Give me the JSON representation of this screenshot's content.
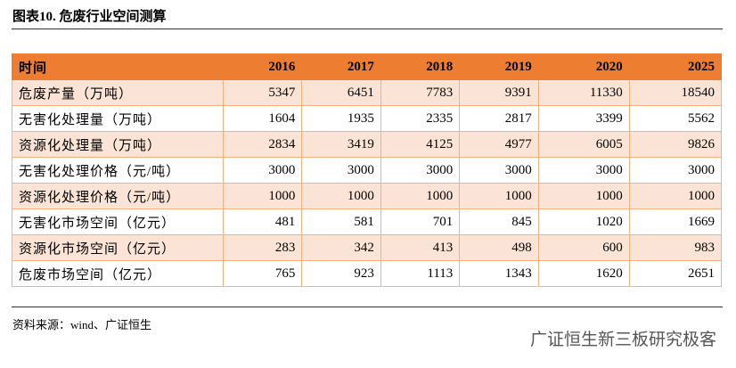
{
  "header": {
    "title": "图表10. 危废行业空间测算"
  },
  "table": {
    "columns": [
      "时间",
      "2016",
      "2017",
      "2018",
      "2019",
      "2020",
      "2025"
    ],
    "rows": [
      [
        "危废产量（万吨）",
        "5347",
        "6451",
        "7783",
        "9391",
        "11330",
        "18540"
      ],
      [
        "无害化处理量（万吨）",
        "1604",
        "1935",
        "2335",
        "2817",
        "3399",
        "5562"
      ],
      [
        "资源化处理量（万吨）",
        "2834",
        "3419",
        "4125",
        "4977",
        "6005",
        "9826"
      ],
      [
        "无害化处理价格（元/吨）",
        "3000",
        "3000",
        "3000",
        "3000",
        "3000",
        "3000"
      ],
      [
        "资源化处理价格（元/吨）",
        "1000",
        "1000",
        "1000",
        "1000",
        "1000",
        "1000"
      ],
      [
        "无害化市场空间（亿元）",
        "481",
        "581",
        "701",
        "845",
        "1020",
        "1669"
      ],
      [
        "资源化市场空间（亿元）",
        "283",
        "342",
        "413",
        "498",
        "600",
        "983"
      ],
      [
        "危废市场空间（亿元）",
        "765",
        "923",
        "1113",
        "1343",
        "1620",
        "2651"
      ]
    ]
  },
  "footer": {
    "source": "资料来源：wind、广证恒生",
    "watermark": "广证恒生新三板研究极客"
  }
}
